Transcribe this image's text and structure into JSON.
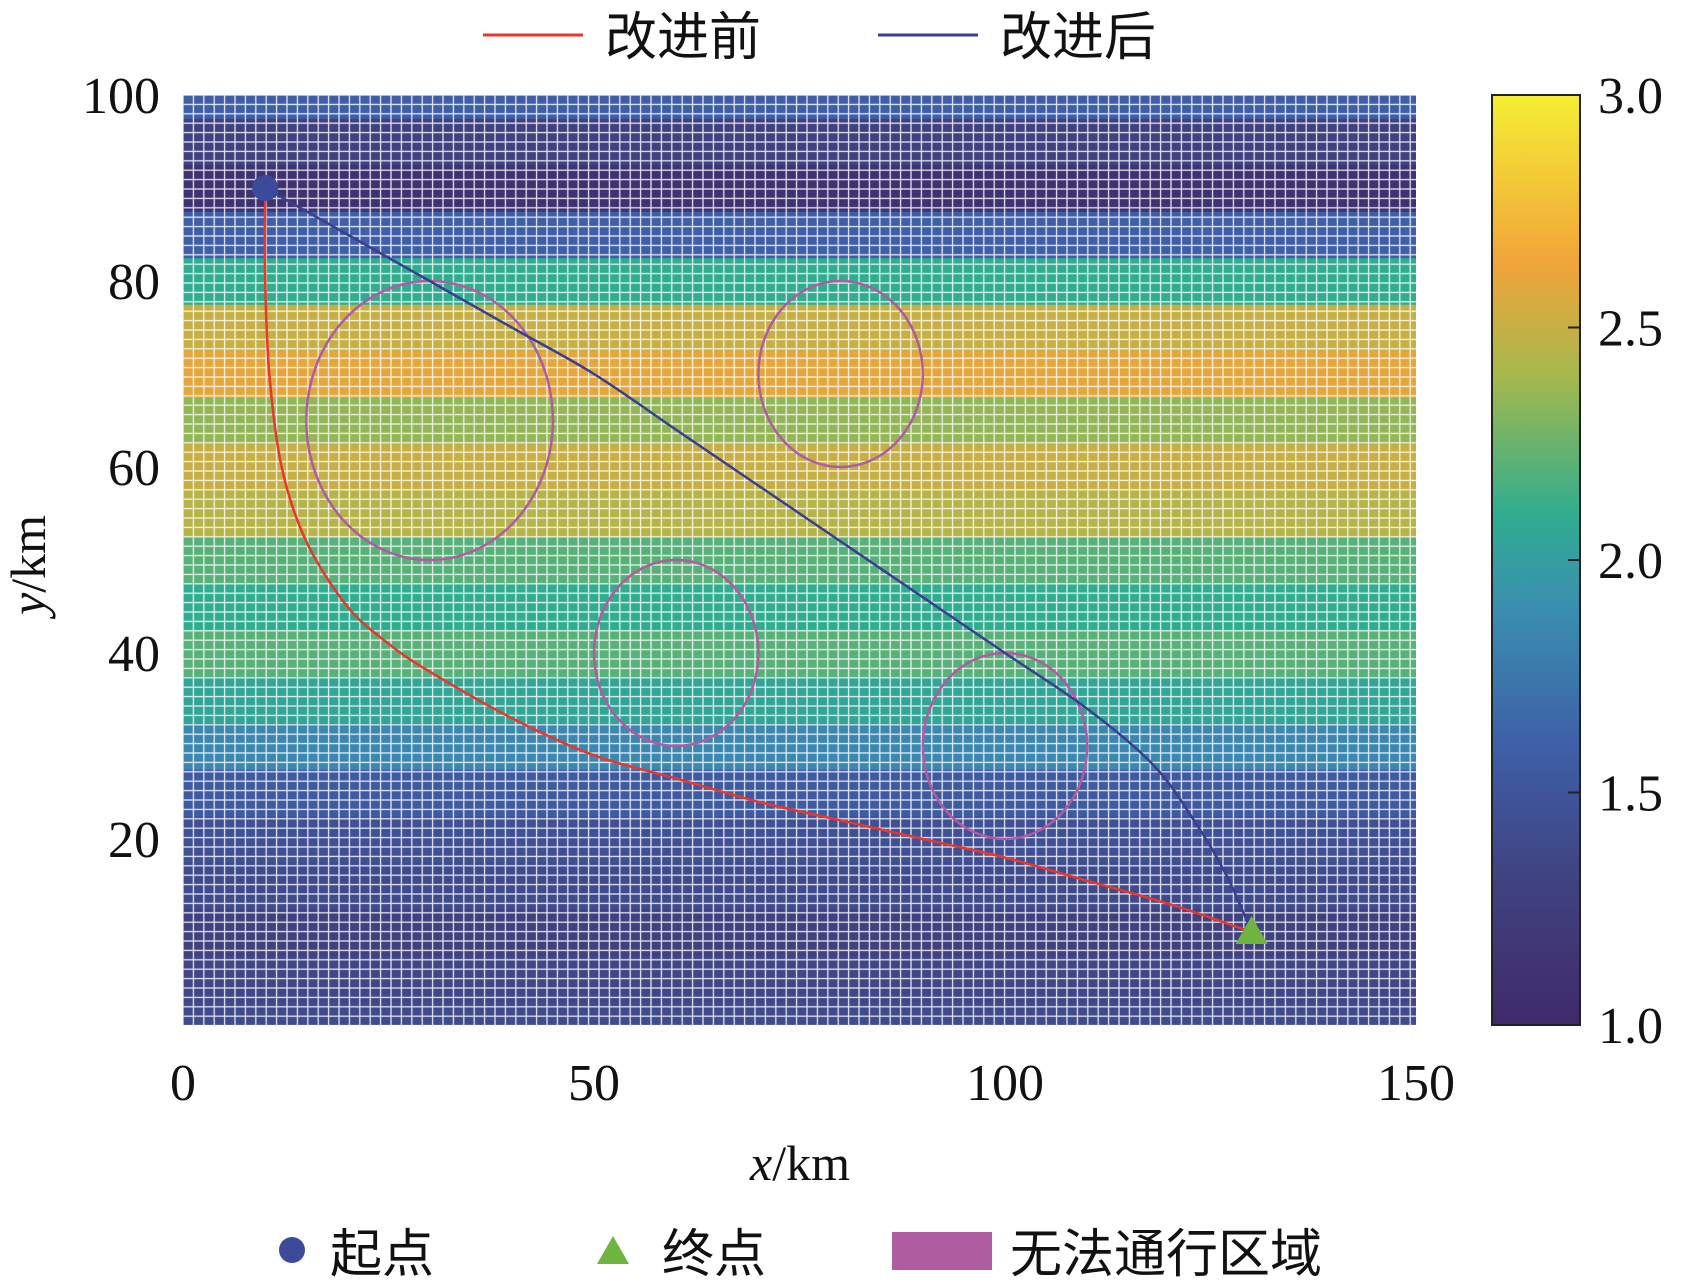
{
  "chart_data": {
    "type": "heatmap",
    "title": "",
    "xlabel_var": "x",
    "xlabel_unit": "/km",
    "ylabel_var": "y",
    "ylabel_unit": "/km",
    "xlim": [
      0,
      150
    ],
    "ylim": [
      0,
      100
    ],
    "xticks": [
      "0",
      "50",
      "100",
      "150"
    ],
    "yticks": [
      "20",
      "40",
      "60",
      "80",
      "100"
    ],
    "colorbar": {
      "min": 1.0,
      "max": 3.0,
      "ticks": [
        "1.0",
        "1.5",
        "2.0",
        "2.5",
        "3.0"
      ],
      "colormap": "viridis-like"
    },
    "legend_top": [
      {
        "name": "改进前",
        "color": "#e8372c"
      },
      {
        "name": "改进后",
        "color": "#3a3f8f"
      }
    ],
    "legend_bottom": [
      {
        "name": "起点",
        "color": "#3b4a9a",
        "marker": "circle"
      },
      {
        "name": "终点",
        "color": "#6fb43f",
        "marker": "triangle"
      },
      {
        "name": "无法通行区域",
        "color": "#b05ca0",
        "marker": "rect"
      }
    ],
    "start_point": {
      "x": 10,
      "y": 90
    },
    "end_point": {
      "x": 130,
      "y": 10
    },
    "obstacles": [
      {
        "cx": 30,
        "cy": 65,
        "r": 15
      },
      {
        "cx": 80,
        "cy": 70,
        "r": 10
      },
      {
        "cx": 60,
        "cy": 40,
        "r": 10
      },
      {
        "cx": 100,
        "cy": 30,
        "r": 10
      }
    ],
    "series": [
      {
        "name": "改进前",
        "color": "#e8372c",
        "points": [
          [
            10,
            90
          ],
          [
            10,
            80
          ],
          [
            10.5,
            70
          ],
          [
            12,
            60
          ],
          [
            15,
            52
          ],
          [
            20,
            45
          ],
          [
            25,
            41
          ],
          [
            30,
            38
          ],
          [
            40,
            33
          ],
          [
            50,
            29
          ],
          [
            60,
            26.5
          ],
          [
            70,
            24
          ],
          [
            80,
            22
          ],
          [
            90,
            20
          ],
          [
            100,
            18
          ],
          [
            110,
            15.5
          ],
          [
            120,
            13
          ],
          [
            130,
            10
          ]
        ]
      },
      {
        "name": "改进后",
        "color": "#3a3f8f",
        "points": [
          [
            10,
            90
          ],
          [
            20,
            85
          ],
          [
            30,
            80
          ],
          [
            40,
            75
          ],
          [
            50,
            70
          ],
          [
            60,
            64
          ],
          [
            70,
            58
          ],
          [
            80,
            52
          ],
          [
            90,
            46
          ],
          [
            100,
            40
          ],
          [
            110,
            34
          ],
          [
            118,
            28
          ],
          [
            123,
            22
          ],
          [
            127,
            16
          ],
          [
            130,
            10
          ]
        ]
      }
    ],
    "heat_rows": [
      {
        "y": 0,
        "v": 1.4
      },
      {
        "y": 5,
        "v": 1.35
      },
      {
        "y": 10,
        "v": 1.3
      },
      {
        "y": 15,
        "v": 1.4
      },
      {
        "y": 20,
        "v": 1.45
      },
      {
        "y": 25,
        "v": 1.55
      },
      {
        "y": 30,
        "v": 1.85
      },
      {
        "y": 35,
        "v": 2.05
      },
      {
        "y": 40,
        "v": 2.2
      },
      {
        "y": 45,
        "v": 2.1
      },
      {
        "y": 50,
        "v": 2.2
      },
      {
        "y": 55,
        "v": 2.45
      },
      {
        "y": 60,
        "v": 2.5
      },
      {
        "y": 65,
        "v": 2.35
      },
      {
        "y": 70,
        "v": 2.6
      },
      {
        "y": 75,
        "v": 2.5
      },
      {
        "y": 80,
        "v": 2.1
      },
      {
        "y": 85,
        "v": 1.6
      },
      {
        "y": 90,
        "v": 1.1
      },
      {
        "y": 95,
        "v": 1.3
      },
      {
        "y": 100,
        "v": 1.6
      }
    ]
  }
}
